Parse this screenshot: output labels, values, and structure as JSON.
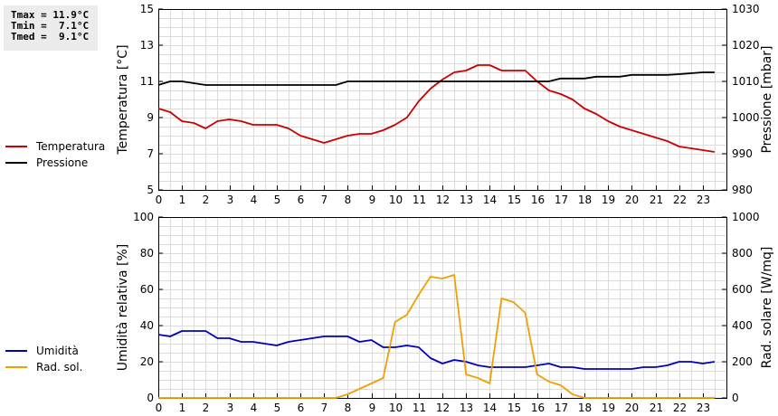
{
  "stats": {
    "tmax": "Tmax = 11.9°C",
    "tmin": "Tmin =  7.1°C",
    "tmed": "Tmed =  9.1°C"
  },
  "legend_top": [
    {
      "label": "Temperatura",
      "color": "#cc0000"
    },
    {
      "label": "Pressione",
      "color": "#000000"
    }
  ],
  "legend_bottom": [
    {
      "label": "Umidità",
      "color": "#0000bb"
    },
    {
      "label": "Rad. sol.",
      "color": "#f0a000"
    }
  ],
  "chart_data": [
    {
      "type": "line",
      "xlim": [
        0,
        24
      ],
      "x_ticks": [
        "0",
        "1",
        "2",
        "3",
        "4",
        "5",
        "6",
        "7",
        "8",
        "9",
        "10",
        "11",
        "12",
        "13",
        "14",
        "15",
        "16",
        "17",
        "18",
        "19",
        "20",
        "21",
        "22",
        "23"
      ],
      "ylabel": "Temperatura [°C]",
      "ylim": [
        5,
        15
      ],
      "y_ticks": [
        "5",
        "7",
        "9",
        "11",
        "13",
        "15"
      ],
      "y2label": "Pressione [mbar]",
      "y2lim": [
        980,
        1030
      ],
      "y2_ticks": [
        "980",
        "990",
        "1000",
        "1010",
        "1020",
        "1030"
      ],
      "grid": true,
      "series": [
        {
          "name": "Temperatura",
          "axis": "left",
          "color": "#cc0000",
          "x": [
            0,
            0.5,
            1,
            1.5,
            2,
            2.5,
            3,
            3.5,
            4,
            4.5,
            5,
            5.5,
            6,
            6.5,
            7,
            7.5,
            8,
            8.5,
            9,
            9.5,
            10,
            10.5,
            11,
            11.5,
            12,
            12.5,
            13,
            13.5,
            14,
            14.5,
            15,
            15.5,
            16,
            16.5,
            17,
            17.5,
            18,
            18.5,
            19,
            19.5,
            20,
            20.5,
            21,
            21.5,
            22,
            22.5,
            23,
            23.5
          ],
          "y": [
            9.5,
            9.3,
            8.8,
            8.7,
            8.4,
            8.8,
            8.9,
            8.8,
            8.6,
            8.6,
            8.6,
            8.4,
            8.0,
            7.8,
            7.6,
            7.8,
            8.0,
            8.1,
            8.1,
            8.3,
            8.6,
            9.0,
            9.9,
            10.6,
            11.1,
            11.5,
            11.6,
            11.9,
            11.9,
            11.6,
            11.6,
            11.6,
            11.0,
            10.5,
            10.3,
            10.0,
            9.5,
            9.2,
            8.8,
            8.5,
            8.3,
            8.1,
            7.9,
            7.7,
            7.4,
            7.3,
            7.2,
            7.1
          ]
        },
        {
          "name": "Pressione",
          "axis": "right",
          "color": "#000000",
          "x": [
            0,
            0.5,
            1,
            1.5,
            2,
            7.5,
            8,
            11,
            16.5,
            17,
            18,
            18.5,
            19.5,
            20,
            21.5,
            22,
            23,
            23.5
          ],
          "y": [
            1009,
            1010,
            1010,
            1009.5,
            1009,
            1009,
            1010,
            1010,
            1010,
            1010.8,
            1010.8,
            1011.3,
            1011.3,
            1011.8,
            1011.8,
            1012,
            1012.5,
            1012.5
          ]
        }
      ]
    },
    {
      "type": "line",
      "xlim": [
        0,
        24
      ],
      "x_ticks": [
        "0",
        "1",
        "2",
        "3",
        "4",
        "5",
        "6",
        "7",
        "8",
        "9",
        "10",
        "11",
        "12",
        "13",
        "14",
        "15",
        "16",
        "17",
        "18",
        "19",
        "20",
        "21",
        "22",
        "23"
      ],
      "ylabel": "Umidità relativa [%]",
      "ylim": [
        0,
        100
      ],
      "y_ticks": [
        "0",
        "20",
        "40",
        "60",
        "80",
        "100"
      ],
      "y2label": "Rad. solare [W/mq]",
      "y2lim": [
        0,
        1000
      ],
      "y2_ticks": [
        "0",
        "200",
        "400",
        "600",
        "800",
        "1000"
      ],
      "grid": true,
      "series": [
        {
          "name": "Umidità",
          "axis": "left",
          "color": "#0000bb",
          "x": [
            0,
            0.5,
            1,
            1.5,
            2,
            2.5,
            3,
            3.5,
            4,
            4.5,
            5,
            5.5,
            6,
            6.5,
            7,
            7.5,
            8,
            8.5,
            9,
            9.5,
            10,
            10.5,
            11,
            11.5,
            12,
            12.5,
            13,
            13.5,
            14,
            14.5,
            15,
            15.5,
            16,
            16.5,
            17,
            17.5,
            18,
            18.5,
            19,
            19.5,
            20,
            20.5,
            21,
            21.5,
            22,
            22.5,
            23,
            23.5
          ],
          "y": [
            35,
            34,
            37,
            37,
            37,
            33,
            33,
            31,
            31,
            30,
            29,
            31,
            32,
            33,
            34,
            34,
            34,
            31,
            32,
            28,
            28,
            29,
            28,
            22,
            19,
            21,
            20,
            18,
            17,
            17,
            17,
            17,
            18,
            19,
            17,
            17,
            16,
            16,
            16,
            16,
            16,
            17,
            17,
            18,
            20,
            20,
            19,
            20
          ]
        },
        {
          "name": "Rad. sol.",
          "axis": "right",
          "color": "#f0a000",
          "x": [
            0,
            7.5,
            8,
            8.5,
            9,
            9.5,
            10,
            10.5,
            11,
            11.5,
            12,
            12.5,
            13,
            13.5,
            14,
            14.5,
            15,
            15.5,
            16,
            16.5,
            17,
            17.5,
            18,
            23.5
          ],
          "y": [
            0,
            0,
            20,
            50,
            80,
            110,
            420,
            460,
            570,
            670,
            660,
            680,
            130,
            110,
            80,
            550,
            530,
            470,
            130,
            90,
            70,
            20,
            0,
            0
          ]
        }
      ]
    }
  ]
}
